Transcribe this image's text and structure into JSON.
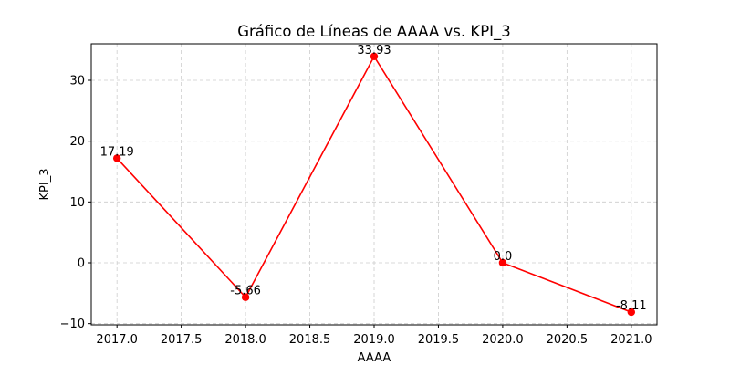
{
  "chart_data": {
    "type": "line",
    "title": "Gráfico de Líneas de AAAA vs. KPI_3",
    "xlabel": "AAAA",
    "ylabel": "KPI_3",
    "x": [
      2017,
      2018,
      2019,
      2020,
      2021
    ],
    "series": [
      {
        "values": [
          17.19,
          -5.66,
          33.93,
          0.0,
          -8.11
        ],
        "labels": [
          "17.19",
          "-5.66",
          "33.93",
          "0.0",
          "-8.11"
        ],
        "color": "#ff0000"
      }
    ],
    "xlim": [
      2016.8,
      2021.2
    ],
    "ylim": [
      -10.2,
      36.0
    ],
    "xticks": [
      "2017.0",
      "2017.5",
      "2018.0",
      "2018.5",
      "2019.0",
      "2019.5",
      "2020.0",
      "2020.5",
      "2021.0"
    ],
    "xtick_values": [
      2017.0,
      2017.5,
      2018.0,
      2018.5,
      2019.0,
      2019.5,
      2020.0,
      2020.5,
      2021.0
    ],
    "yticks": [
      "−10",
      "0",
      "10",
      "20",
      "30"
    ],
    "ytick_values": [
      -10,
      0,
      10,
      20,
      30
    ],
    "grid": true,
    "grid_color": "#cccccc",
    "legend": "none"
  }
}
